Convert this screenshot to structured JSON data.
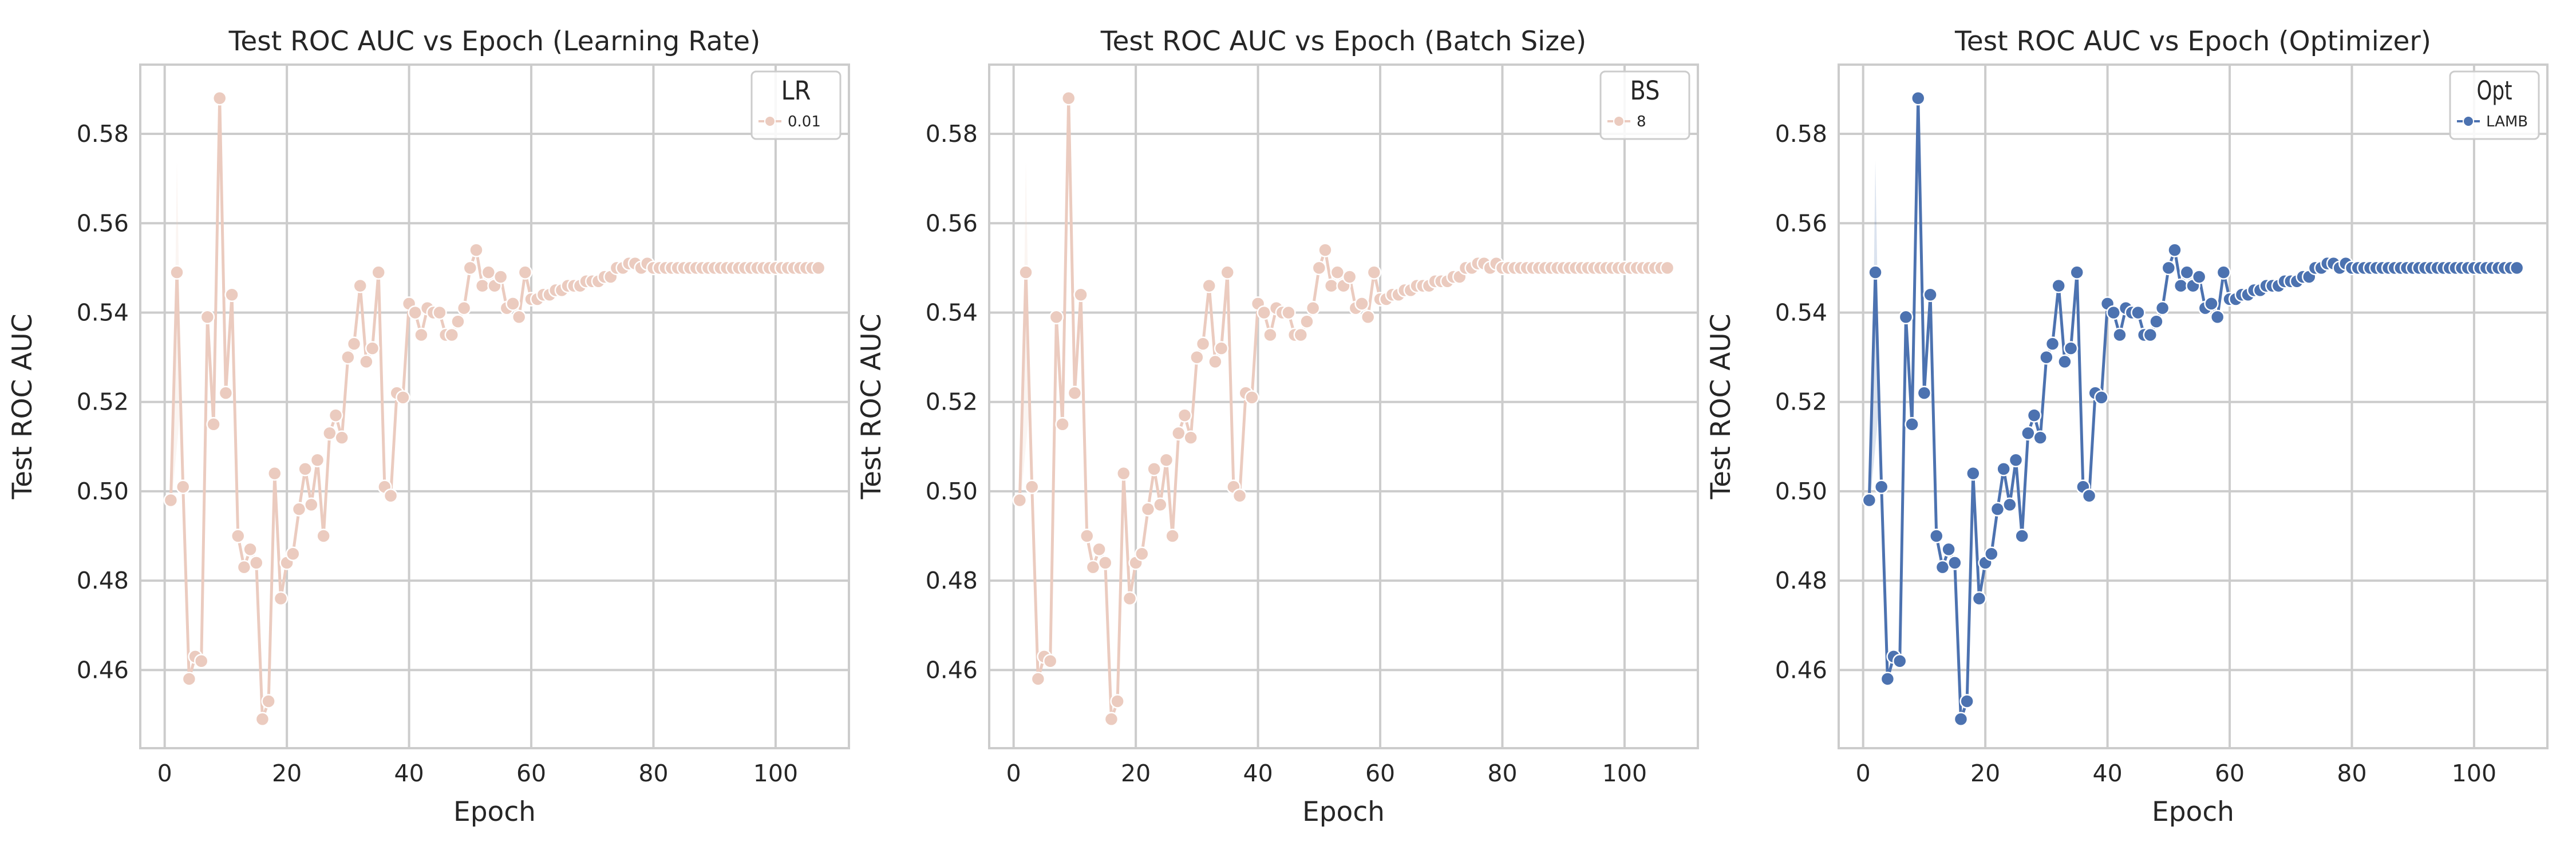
{
  "figure": {
    "background": "#ffffff",
    "panel_face": "#ffffff",
    "grid_color": "#cccccc",
    "spine_color": "#cccccc"
  },
  "chart_data": [
    {
      "type": "line",
      "title": "Test ROC AUC vs Epoch (Learning Rate)",
      "xlabel": "Epoch",
      "ylabel": "Test ROC AUC",
      "xlim": [
        -4,
        112
      ],
      "ylim": [
        0.4425,
        0.5955
      ],
      "xticks": [
        "0",
        "20",
        "40",
        "60",
        "80",
        "100"
      ],
      "yticks": [
        "0.46",
        "0.48",
        "0.50",
        "0.52",
        "0.54",
        "0.56",
        "0.58"
      ],
      "grid": true,
      "legend": {
        "title": "LR",
        "placement": "top-right"
      },
      "series": [
        {
          "name": "0.01",
          "color": "#ebcbbf",
          "marker": "circle",
          "x": [
            1,
            2,
            3,
            4,
            5,
            6,
            7,
            8,
            9,
            10,
            11,
            12,
            13,
            14,
            15,
            16,
            17,
            18,
            19,
            20,
            21,
            22,
            23,
            24,
            25,
            26,
            27,
            28,
            29,
            30,
            31,
            32,
            33,
            34,
            35,
            36,
            37,
            38,
            39,
            40,
            41,
            42,
            43,
            44,
            45,
            46,
            47,
            48,
            49,
            50,
            51,
            52,
            53,
            54,
            55,
            56,
            57,
            58,
            59,
            60,
            61,
            62,
            63,
            64,
            65,
            66,
            67,
            68,
            69,
            70,
            71,
            72,
            73,
            74,
            75,
            76,
            77,
            78,
            79,
            80,
            81,
            82,
            83,
            84,
            85,
            86,
            87,
            88,
            89,
            90,
            91,
            92,
            93,
            94,
            95,
            96,
            97,
            98,
            99,
            100,
            101,
            102,
            103,
            104,
            105,
            106,
            107
          ],
          "y": [
            0.498,
            0.549,
            0.501,
            0.458,
            0.463,
            0.462,
            0.539,
            0.515,
            0.588,
            0.522,
            0.544,
            0.49,
            0.483,
            0.487,
            0.484,
            0.449,
            0.453,
            0.504,
            0.476,
            0.484,
            0.486,
            0.496,
            0.505,
            0.497,
            0.507,
            0.49,
            0.513,
            0.517,
            0.512,
            0.53,
            0.533,
            0.546,
            0.529,
            0.532,
            0.549,
            0.501,
            0.499,
            0.522,
            0.521,
            0.542,
            0.54,
            0.535,
            0.541,
            0.54,
            0.54,
            0.535,
            0.535,
            0.538,
            0.541,
            0.55,
            0.554,
            0.546,
            0.549,
            0.546,
            0.548,
            0.541,
            0.542,
            0.539,
            0.549,
            0.543,
            0.543,
            0.544,
            0.544,
            0.545,
            0.545,
            0.546,
            0.546,
            0.546,
            0.547,
            0.547,
            0.547,
            0.548,
            0.548,
            0.55,
            0.55,
            0.551,
            0.551,
            0.55,
            0.551,
            0.55,
            0.55,
            0.55,
            0.55,
            0.55,
            0.55,
            0.55,
            0.55,
            0.55,
            0.55,
            0.55,
            0.55,
            0.55,
            0.55,
            0.55,
            0.55,
            0.55,
            0.55,
            0.55,
            0.55,
            0.55,
            0.55,
            0.55,
            0.55,
            0.55,
            0.55,
            0.55,
            0.55
          ]
        }
      ]
    },
    {
      "type": "line",
      "title": "Test ROC AUC vs Epoch (Batch Size)",
      "xlabel": "Epoch",
      "ylabel": "Test ROC AUC",
      "xlim": [
        -4,
        112
      ],
      "ylim": [
        0.4425,
        0.5955
      ],
      "xticks": [
        "0",
        "20",
        "40",
        "60",
        "80",
        "100"
      ],
      "yticks": [
        "0.46",
        "0.48",
        "0.50",
        "0.52",
        "0.54",
        "0.56",
        "0.58"
      ],
      "grid": true,
      "legend": {
        "title": "BS",
        "placement": "top-right"
      },
      "series": [
        {
          "name": "8",
          "color": "#ebcbbf",
          "marker": "circle",
          "x": [
            1,
            2,
            3,
            4,
            5,
            6,
            7,
            8,
            9,
            10,
            11,
            12,
            13,
            14,
            15,
            16,
            17,
            18,
            19,
            20,
            21,
            22,
            23,
            24,
            25,
            26,
            27,
            28,
            29,
            30,
            31,
            32,
            33,
            34,
            35,
            36,
            37,
            38,
            39,
            40,
            41,
            42,
            43,
            44,
            45,
            46,
            47,
            48,
            49,
            50,
            51,
            52,
            53,
            54,
            55,
            56,
            57,
            58,
            59,
            60,
            61,
            62,
            63,
            64,
            65,
            66,
            67,
            68,
            69,
            70,
            71,
            72,
            73,
            74,
            75,
            76,
            77,
            78,
            79,
            80,
            81,
            82,
            83,
            84,
            85,
            86,
            87,
            88,
            89,
            90,
            91,
            92,
            93,
            94,
            95,
            96,
            97,
            98,
            99,
            100,
            101,
            102,
            103,
            104,
            105,
            106,
            107
          ],
          "y": [
            0.498,
            0.549,
            0.501,
            0.458,
            0.463,
            0.462,
            0.539,
            0.515,
            0.588,
            0.522,
            0.544,
            0.49,
            0.483,
            0.487,
            0.484,
            0.449,
            0.453,
            0.504,
            0.476,
            0.484,
            0.486,
            0.496,
            0.505,
            0.497,
            0.507,
            0.49,
            0.513,
            0.517,
            0.512,
            0.53,
            0.533,
            0.546,
            0.529,
            0.532,
            0.549,
            0.501,
            0.499,
            0.522,
            0.521,
            0.542,
            0.54,
            0.535,
            0.541,
            0.54,
            0.54,
            0.535,
            0.535,
            0.538,
            0.541,
            0.55,
            0.554,
            0.546,
            0.549,
            0.546,
            0.548,
            0.541,
            0.542,
            0.539,
            0.549,
            0.543,
            0.543,
            0.544,
            0.544,
            0.545,
            0.545,
            0.546,
            0.546,
            0.546,
            0.547,
            0.547,
            0.547,
            0.548,
            0.548,
            0.55,
            0.55,
            0.551,
            0.551,
            0.55,
            0.551,
            0.55,
            0.55,
            0.55,
            0.55,
            0.55,
            0.55,
            0.55,
            0.55,
            0.55,
            0.55,
            0.55,
            0.55,
            0.55,
            0.55,
            0.55,
            0.55,
            0.55,
            0.55,
            0.55,
            0.55,
            0.55,
            0.55,
            0.55,
            0.55,
            0.55,
            0.55,
            0.55,
            0.55
          ]
        }
      ]
    },
    {
      "type": "line",
      "title": "Test ROC AUC vs Epoch (Optimizer)",
      "xlabel": "Epoch",
      "ylabel": "Test ROC AUC",
      "xlim": [
        -4,
        112
      ],
      "ylim": [
        0.4425,
        0.5955
      ],
      "xticks": [
        "0",
        "20",
        "40",
        "60",
        "80",
        "100"
      ],
      "yticks": [
        "0.46",
        "0.48",
        "0.50",
        "0.52",
        "0.54",
        "0.56",
        "0.58"
      ],
      "grid": true,
      "legend": {
        "title": "Opt",
        "placement": "top-right"
      },
      "series": [
        {
          "name": "LAMB",
          "color": "#4c72b0",
          "marker": "circle",
          "x": [
            1,
            2,
            3,
            4,
            5,
            6,
            7,
            8,
            9,
            10,
            11,
            12,
            13,
            14,
            15,
            16,
            17,
            18,
            19,
            20,
            21,
            22,
            23,
            24,
            25,
            26,
            27,
            28,
            29,
            30,
            31,
            32,
            33,
            34,
            35,
            36,
            37,
            38,
            39,
            40,
            41,
            42,
            43,
            44,
            45,
            46,
            47,
            48,
            49,
            50,
            51,
            52,
            53,
            54,
            55,
            56,
            57,
            58,
            59,
            60,
            61,
            62,
            63,
            64,
            65,
            66,
            67,
            68,
            69,
            70,
            71,
            72,
            73,
            74,
            75,
            76,
            77,
            78,
            79,
            80,
            81,
            82,
            83,
            84,
            85,
            86,
            87,
            88,
            89,
            90,
            91,
            92,
            93,
            94,
            95,
            96,
            97,
            98,
            99,
            100,
            101,
            102,
            103,
            104,
            105,
            106,
            107
          ],
          "y": [
            0.498,
            0.549,
            0.501,
            0.458,
            0.463,
            0.462,
            0.539,
            0.515,
            0.588,
            0.522,
            0.544,
            0.49,
            0.483,
            0.487,
            0.484,
            0.449,
            0.453,
            0.504,
            0.476,
            0.484,
            0.486,
            0.496,
            0.505,
            0.497,
            0.507,
            0.49,
            0.513,
            0.517,
            0.512,
            0.53,
            0.533,
            0.546,
            0.529,
            0.532,
            0.549,
            0.501,
            0.499,
            0.522,
            0.521,
            0.542,
            0.54,
            0.535,
            0.541,
            0.54,
            0.54,
            0.535,
            0.535,
            0.538,
            0.541,
            0.55,
            0.554,
            0.546,
            0.549,
            0.546,
            0.548,
            0.541,
            0.542,
            0.539,
            0.549,
            0.543,
            0.543,
            0.544,
            0.544,
            0.545,
            0.545,
            0.546,
            0.546,
            0.546,
            0.547,
            0.547,
            0.547,
            0.548,
            0.548,
            0.55,
            0.55,
            0.551,
            0.551,
            0.55,
            0.551,
            0.55,
            0.55,
            0.55,
            0.55,
            0.55,
            0.55,
            0.55,
            0.55,
            0.55,
            0.55,
            0.55,
            0.55,
            0.55,
            0.55,
            0.55,
            0.55,
            0.55,
            0.55,
            0.55,
            0.55,
            0.55,
            0.55,
            0.55,
            0.55,
            0.55,
            0.55,
            0.55,
            0.55
          ]
        }
      ]
    }
  ]
}
